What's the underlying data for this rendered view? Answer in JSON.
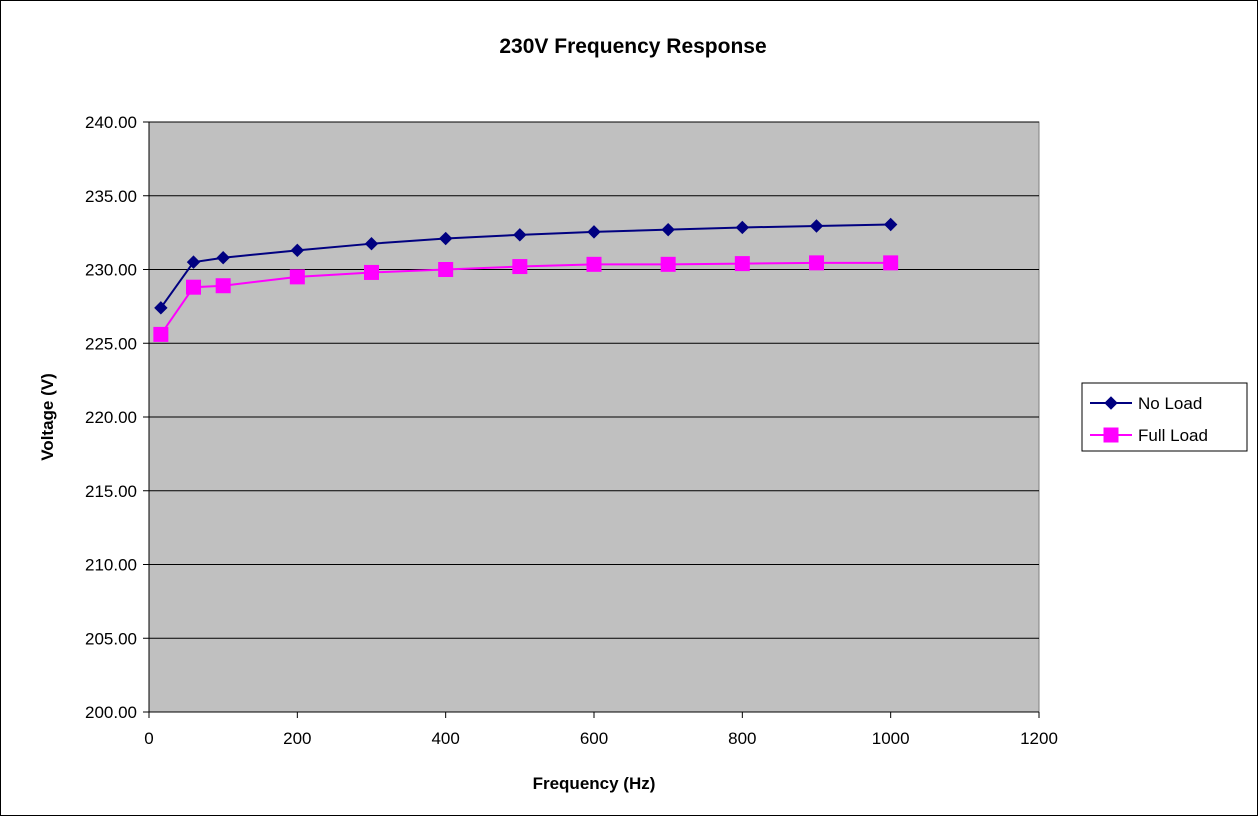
{
  "chart_data": {
    "type": "line",
    "title": "230V Frequency Response",
    "xlabel": "Frequency (Hz)",
    "ylabel": "Voltage (V)",
    "xlim": [
      0,
      1200
    ],
    "ylim": [
      200,
      240
    ],
    "xticks": [
      0,
      200,
      400,
      600,
      800,
      1000,
      1200
    ],
    "yticks": [
      200,
      205,
      210,
      215,
      220,
      225,
      230,
      235,
      240
    ],
    "ytick_labels": [
      "200.00",
      "205.00",
      "210.00",
      "215.00",
      "220.00",
      "225.00",
      "230.00",
      "235.00",
      "240.00"
    ],
    "grid": "horizontal",
    "plot_background": "#c0c0c0",
    "legend_position": "right",
    "series": [
      {
        "name": "No Load",
        "color": "#000080",
        "marker": "diamond",
        "x": [
          16,
          60,
          100,
          200,
          300,
          400,
          500,
          600,
          700,
          800,
          900,
          1000
        ],
        "y": [
          227.4,
          230.5,
          230.8,
          231.3,
          231.75,
          232.1,
          232.35,
          232.55,
          232.7,
          232.85,
          232.95,
          233.05
        ]
      },
      {
        "name": "Full Load",
        "color": "#ff00ff",
        "marker": "square",
        "x": [
          16,
          60,
          100,
          200,
          300,
          400,
          500,
          600,
          700,
          800,
          900,
          1000
        ],
        "y": [
          225.6,
          228.8,
          228.9,
          229.5,
          229.8,
          230.0,
          230.2,
          230.35,
          230.35,
          230.4,
          230.45,
          230.45
        ]
      }
    ]
  }
}
